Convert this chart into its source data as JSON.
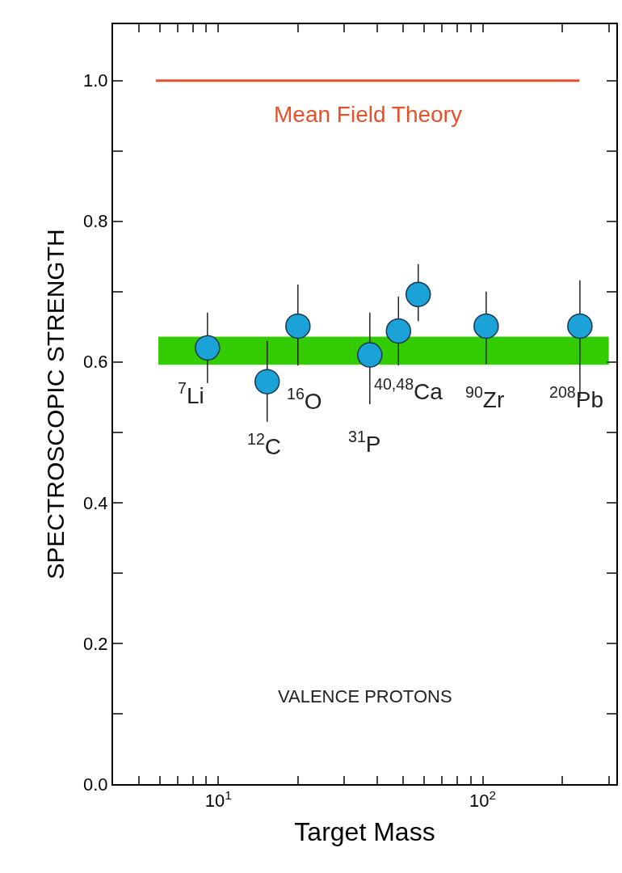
{
  "chart_data": {
    "type": "scatter",
    "xlabel": "Target Mass",
    "ylabel": "SPECTROSCOPIC STRENGTH",
    "x": [
      9.1,
      15.3,
      20,
      37.4,
      48,
      57,
      103,
      233
    ],
    "series": [
      {
        "color": "#1ba3d8",
        "values": [
          0.62,
          0.572,
          0.651,
          0.61,
          0.644,
          0.696,
          0.651,
          0.651
        ],
        "errors": [
          [
            0.57,
            0.67
          ],
          [
            0.515,
            0.63
          ],
          [
            0.595,
            0.71
          ],
          [
            0.54,
            0.67
          ],
          [
            0.595,
            0.693
          ],
          [
            0.658,
            0.739
          ],
          [
            0.597,
            0.7
          ],
          [
            0.549,
            0.716
          ]
        ],
        "marker": "circle"
      },
      {
        "type": "line",
        "color": "#e8502a",
        "x": [
          5.8,
          232
        ],
        "values": [
          1.0,
          1.0
        ],
        "marker": "none"
      }
    ],
    "bands": [
      {
        "axis": "y",
        "from": 0.596,
        "to": 0.636,
        "color": "#33cc00"
      }
    ],
    "annotations": [
      "Mean Field Theory",
      "$^{7}$Li",
      "$^{12}$C",
      "$^{16}$O",
      "$^{31}$P",
      "$^{40,48}$Ca",
      "$^{90}$Zr",
      "$^{208}$Pb",
      "VALENCE PROTONS"
    ],
    "log": "x",
    "grid": false,
    "legend": false,
    "xlim": [
      4,
      320
    ],
    "ylim": [
      0,
      1.08
    ],
    "xticks": [
      {
        "value": 5,
        "label": null
      },
      {
        "value": 6,
        "label": null
      },
      {
        "value": 7,
        "label": null
      },
      {
        "value": 8,
        "label": null
      },
      {
        "value": 9,
        "label": null
      },
      {
        "value": 10,
        "label": "10$^{1}$"
      },
      {
        "value": 20,
        "label": null
      },
      {
        "value": 30,
        "label": null
      },
      {
        "value": 40,
        "label": null
      },
      {
        "value": 50,
        "label": null
      },
      {
        "value": 60,
        "label": null
      },
      {
        "value": 70,
        "label": null
      },
      {
        "value": 80,
        "label": null
      },
      {
        "value": 90,
        "label": null
      },
      {
        "value": 100,
        "label": "10$^{2}$"
      },
      {
        "value": 200,
        "label": null
      },
      {
        "value": 300,
        "label": null
      }
    ],
    "yticks": [
      {
        "value": 0,
        "label": "0.0"
      },
      {
        "value": 0.1,
        "label": null
      },
      {
        "value": 0.2,
        "label": "0.2"
      },
      {
        "value": 0.3,
        "label": null
      },
      {
        "value": 0.4,
        "label": "0.4"
      },
      {
        "value": 0.5,
        "label": null
      },
      {
        "value": 0.6,
        "label": "0.6"
      },
      {
        "value": 0.7,
        "label": null
      },
      {
        "value": 0.8,
        "label": "0.8"
      },
      {
        "value": 0.9,
        "label": null
      },
      {
        "value": 1.0,
        "label": "1.0"
      }
    ]
  }
}
